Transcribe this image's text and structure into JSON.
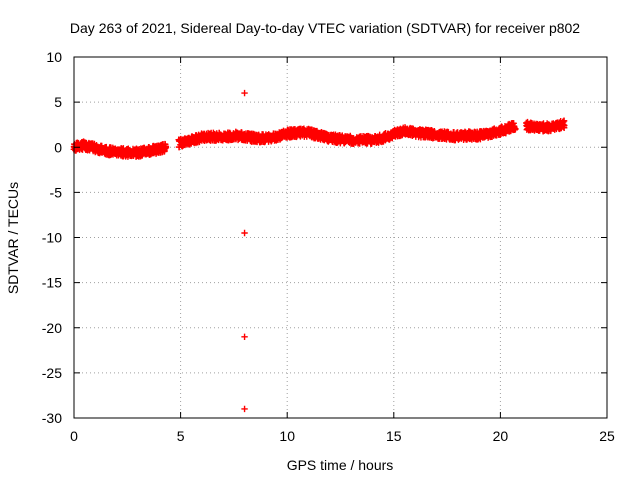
{
  "chart_data": {
    "type": "scatter",
    "title": "Day 263 of 2021, Sidereal Day-to-day VTEC variation (SDTVAR) for receiver p802",
    "xlabel": "GPS time / hours",
    "ylabel": "SDTVAR / TECUs",
    "xlim": [
      0,
      25
    ],
    "ylim": [
      -30,
      10
    ],
    "xticks": [
      0,
      5,
      10,
      15,
      20,
      25
    ],
    "yticks": [
      10,
      5,
      0,
      -5,
      -10,
      -15,
      -20,
      -25,
      -30
    ],
    "xtick_labels": [
      "0",
      "5",
      "10",
      "15",
      "20",
      "25"
    ],
    "ytick_labels": [
      "10",
      "5",
      "0",
      "-5",
      "-10",
      "-15",
      "-20",
      "-25",
      "-30"
    ],
    "grid": true,
    "marker": "+",
    "series_color": "#ff0000",
    "trend": [
      [
        0.0,
        0.0
      ],
      [
        0.5,
        0.2
      ],
      [
        1.0,
        -0.1
      ],
      [
        1.5,
        -0.4
      ],
      [
        2.0,
        -0.5
      ],
      [
        2.5,
        -0.6
      ],
      [
        3.0,
        -0.6
      ],
      [
        3.5,
        -0.4
      ],
      [
        4.0,
        -0.2
      ],
      [
        5.0,
        0.5
      ],
      [
        5.5,
        0.8
      ],
      [
        6.0,
        1.1
      ],
      [
        6.5,
        1.2
      ],
      [
        7.0,
        1.1
      ],
      [
        7.5,
        1.3
      ],
      [
        8.0,
        1.2
      ],
      [
        8.5,
        1.0
      ],
      [
        9.0,
        1.0
      ],
      [
        9.5,
        1.2
      ],
      [
        10.0,
        1.5
      ],
      [
        10.5,
        1.6
      ],
      [
        11.0,
        1.6
      ],
      [
        11.5,
        1.3
      ],
      [
        12.0,
        1.0
      ],
      [
        12.5,
        0.9
      ],
      [
        13.0,
        0.8
      ],
      [
        13.5,
        0.8
      ],
      [
        14.0,
        0.8
      ],
      [
        14.5,
        1.0
      ],
      [
        15.0,
        1.5
      ],
      [
        15.5,
        1.8
      ],
      [
        16.0,
        1.6
      ],
      [
        16.5,
        1.5
      ],
      [
        17.0,
        1.4
      ],
      [
        17.5,
        1.3
      ],
      [
        18.0,
        1.2
      ],
      [
        18.5,
        1.3
      ],
      [
        19.0,
        1.3
      ],
      [
        19.5,
        1.5
      ],
      [
        20.0,
        1.8
      ],
      [
        20.5,
        2.2
      ],
      [
        21.0,
        2.4
      ],
      [
        21.5,
        2.3
      ],
      [
        22.0,
        2.2
      ],
      [
        22.5,
        2.2
      ],
      [
        23.0,
        2.6
      ]
    ],
    "gaps": [
      [
        4.3,
        4.9
      ],
      [
        20.7,
        21.2
      ]
    ],
    "outliers": [
      [
        8.0,
        6.0
      ],
      [
        8.0,
        -9.5
      ],
      [
        8.0,
        -21.0
      ],
      [
        8.0,
        -29.0
      ]
    ]
  }
}
